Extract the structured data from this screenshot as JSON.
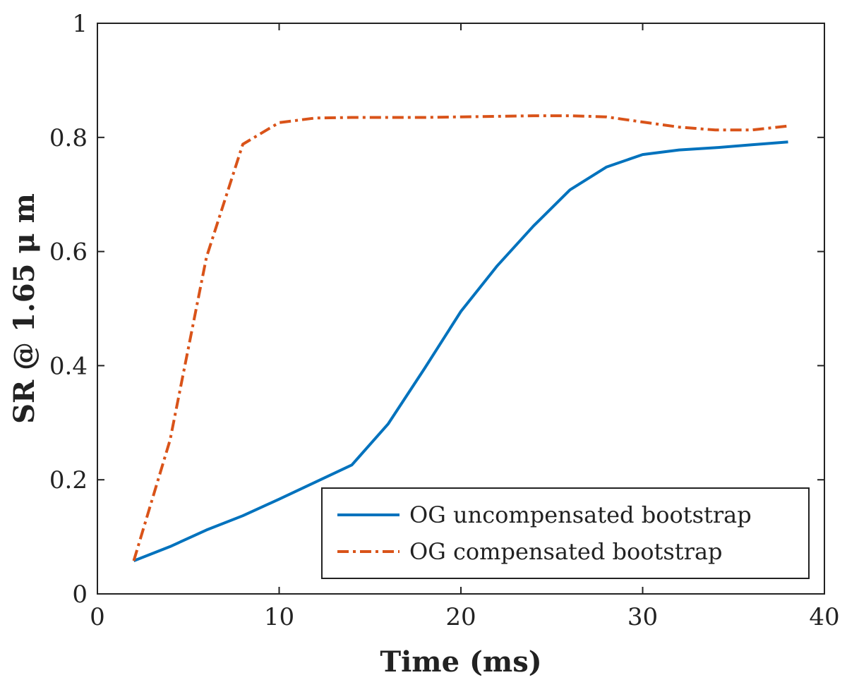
{
  "chart_data": {
    "type": "line",
    "title": "",
    "xlabel": "Time (ms)",
    "ylabel": "SR @ 1.65 μ m",
    "xlim": [
      0,
      40
    ],
    "ylim": [
      0,
      1
    ],
    "x_ticks": [
      0,
      10,
      20,
      30,
      40
    ],
    "x_tick_labels": [
      "0",
      "10",
      "20",
      "30",
      "40"
    ],
    "y_ticks": [
      0,
      0.2,
      0.4,
      0.6,
      0.8,
      1
    ],
    "y_tick_labels": [
      "0",
      "0.2",
      "0.4",
      "0.6",
      "0.8",
      "1"
    ],
    "grid": false,
    "legend_position": "bottom-right",
    "series": [
      {
        "name": "OG uncompensated bootstrap",
        "color": "#0072BD",
        "style": "solid",
        "x": [
          2,
          4,
          6,
          8,
          10,
          12,
          14,
          16,
          18,
          20,
          22,
          24,
          26,
          28,
          30,
          32,
          34,
          36,
          38
        ],
        "y": [
          0.058,
          0.083,
          0.112,
          0.137,
          0.166,
          0.196,
          0.226,
          0.298,
          0.395,
          0.495,
          0.575,
          0.645,
          0.708,
          0.748,
          0.77,
          0.778,
          0.782,
          0.787,
          0.792
        ]
      },
      {
        "name": "OG compensated bootstrap",
        "color": "#D95319",
        "style": "dashdot",
        "x": [
          2,
          4,
          6,
          8,
          10,
          12,
          14,
          16,
          18,
          20,
          22,
          24,
          26,
          28,
          30,
          32,
          34,
          36,
          38
        ],
        "y": [
          0.058,
          0.27,
          0.59,
          0.788,
          0.826,
          0.834,
          0.835,
          0.835,
          0.835,
          0.836,
          0.837,
          0.838,
          0.838,
          0.836,
          0.827,
          0.818,
          0.813,
          0.813,
          0.82
        ]
      }
    ]
  }
}
